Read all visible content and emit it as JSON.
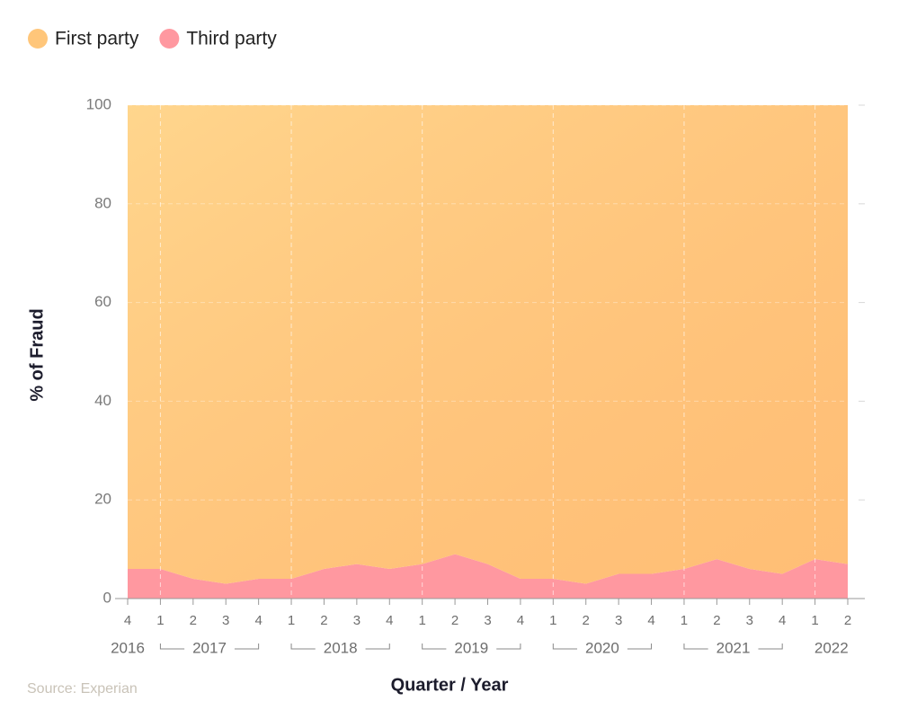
{
  "chart_data": {
    "type": "stacked-area",
    "source": "Source: Experian",
    "x_label": "Quarter / Year",
    "y_label": "% of Fraud",
    "years": [
      {
        "label": "2016",
        "quarters": [
          "4"
        ]
      },
      {
        "label": "2017",
        "quarters": [
          "1",
          "2",
          "3",
          "4"
        ]
      },
      {
        "label": "2018",
        "quarters": [
          "1",
          "2",
          "3",
          "4"
        ]
      },
      {
        "label": "2019",
        "quarters": [
          "1",
          "2",
          "3",
          "4"
        ]
      },
      {
        "label": "2020",
        "quarters": [
          "1",
          "2",
          "3",
          "4"
        ]
      },
      {
        "label": "2021",
        "quarters": [
          "1",
          "2",
          "3",
          "4"
        ]
      },
      {
        "label": "2022",
        "quarters": [
          "1",
          "2"
        ]
      }
    ],
    "series": [
      {
        "name": "First party",
        "color": "#ffc67a",
        "values": [
          94,
          94,
          96,
          97,
          96,
          96,
          94,
          93,
          94,
          93,
          91,
          93,
          96,
          96,
          97,
          95,
          95,
          94,
          92,
          94,
          95,
          92,
          93
        ]
      },
      {
        "name": "Third party",
        "color": "#ff98a0",
        "values": [
          6,
          6,
          4,
          3,
          4,
          4,
          6,
          7,
          6,
          7,
          9,
          7,
          4,
          4,
          3,
          5,
          5,
          6,
          8,
          6,
          5,
          8,
          7
        ]
      }
    ],
    "ylim": [
      0,
      100
    ],
    "yticks": [
      0,
      20,
      40,
      60,
      80,
      100
    ],
    "grid": true
  }
}
